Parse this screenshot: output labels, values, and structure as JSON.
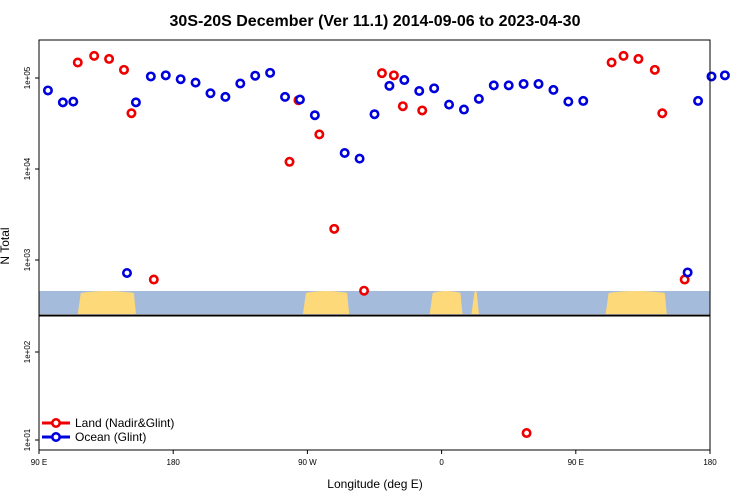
{
  "chart_data": {
    "type": "scatter",
    "title": "30S-20S December (Ver 11.1)   2014-09-06 to 2023-04-30",
    "xlabel": "Longitude (deg E)",
    "ylabel": "N Total",
    "y_scale": "log",
    "xlim": [
      90,
      540
    ],
    "x_ticks": [
      {
        "value": 90,
        "label": "90 E"
      },
      {
        "value": 180,
        "label": "180"
      },
      {
        "value": 270,
        "label": "90 W"
      },
      {
        "value": 360,
        "label": "0"
      },
      {
        "value": 450,
        "label": "90 E"
      },
      {
        "value": 540,
        "label": "180"
      }
    ],
    "upper_panel": {
      "ylim": [
        300,
        300000
      ],
      "y_ticks": [
        {
          "value": 1000,
          "label": "1e+03"
        },
        {
          "value": 10000,
          "label": "1e+04"
        },
        {
          "value": 100000,
          "label": "1e+05"
        }
      ]
    },
    "lower_panel": {
      "ylim": [
        9,
        200
      ],
      "y_ticks": [
        {
          "value": 10,
          "label": "1e+01"
        },
        {
          "value": 100,
          "label": "1e+02"
        }
      ]
    },
    "land_strip": {
      "ocean_color": "#a4bbdc",
      "land_color": "#fdd97a",
      "land_ranges": [
        [
          116,
          155
        ],
        [
          267,
          298
        ],
        [
          352,
          374
        ],
        [
          380,
          385
        ],
        [
          470,
          511
        ]
      ]
    },
    "series": [
      {
        "name": "Land (Nadir&Glint)",
        "color": "#ee0000",
        "points": [
          [
            116,
            148000
          ],
          [
            127,
            175000
          ],
          [
            137,
            162000
          ],
          [
            147,
            123000
          ],
          [
            152,
            41000
          ],
          [
            167,
            610
          ],
          [
            258,
            12000
          ],
          [
            264,
            57000
          ],
          [
            278,
            24000
          ],
          [
            288,
            2200
          ],
          [
            308,
            460
          ],
          [
            320,
            113000
          ],
          [
            328,
            107000
          ],
          [
            334,
            49000
          ],
          [
            347,
            44000
          ],
          [
            417,
            12
          ],
          [
            474,
            148000
          ],
          [
            482,
            175000
          ],
          [
            492,
            162000
          ],
          [
            503,
            123000
          ],
          [
            508,
            41000
          ],
          [
            523,
            610
          ]
        ]
      },
      {
        "name": "Ocean (Glint)",
        "color": "#0000dd",
        "points": [
          [
            96,
            73000
          ],
          [
            106,
            54000
          ],
          [
            113,
            55000
          ],
          [
            149,
            720
          ],
          [
            155,
            54000
          ],
          [
            165,
            104000
          ],
          [
            175,
            107000
          ],
          [
            185,
            97000
          ],
          [
            195,
            89000
          ],
          [
            205,
            68000
          ],
          [
            215,
            62000
          ],
          [
            225,
            87000
          ],
          [
            235,
            106000
          ],
          [
            245,
            114000
          ],
          [
            255,
            62000
          ],
          [
            265,
            58000
          ],
          [
            275,
            39000
          ],
          [
            295,
            15000
          ],
          [
            305,
            13000
          ],
          [
            315,
            40000
          ],
          [
            325,
            82000
          ],
          [
            335,
            95000
          ],
          [
            345,
            72000
          ],
          [
            355,
            77000
          ],
          [
            365,
            51000
          ],
          [
            375,
            45000
          ],
          [
            385,
            59000
          ],
          [
            395,
            83000
          ],
          [
            405,
            83000
          ],
          [
            415,
            86000
          ],
          [
            425,
            86000
          ],
          [
            435,
            74000
          ],
          [
            445,
            55000
          ],
          [
            455,
            56000
          ],
          [
            525,
            730
          ],
          [
            532,
            56000
          ],
          [
            541,
            104000
          ],
          [
            550,
            107000
          ]
        ]
      }
    ],
    "legend": {
      "placement": "bottom-left",
      "entries": [
        "Land (Nadir&Glint)",
        "Ocean (Glint)"
      ]
    }
  }
}
